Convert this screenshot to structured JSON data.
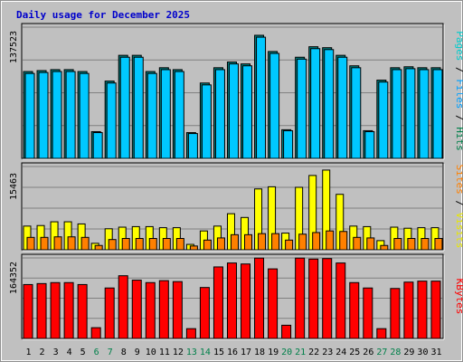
{
  "chart_data": {
    "type": "bar",
    "title": "Daily usage for December 2025",
    "days": [
      "1",
      "2",
      "3",
      "4",
      "5",
      "6",
      "7",
      "8",
      "9",
      "10",
      "11",
      "12",
      "13",
      "14",
      "15",
      "16",
      "17",
      "18",
      "19",
      "20",
      "21",
      "22",
      "23",
      "24",
      "25",
      "26",
      "27",
      "28",
      "29",
      "30",
      "31"
    ],
    "weekend_days": [
      "6",
      "7",
      "13",
      "14",
      "20",
      "21",
      "27",
      "28"
    ],
    "panels": [
      {
        "name": "pages-files-hits",
        "max_label": "137523",
        "ymax": 137523,
        "side_labels": [
          {
            "text": "Pages",
            "color": "#00cccc"
          },
          {
            "text": " / ",
            "color": "#000000"
          },
          {
            "text": "Files",
            "color": "#00a0ff"
          },
          {
            "text": " / ",
            "color": "#000000"
          },
          {
            "text": "Hits",
            "color": "#00804a"
          }
        ],
        "series": [
          {
            "name": "Hits",
            "color": "#008080",
            "values": [
              91000,
              92000,
              93000,
              93000,
              91000,
              28000,
              81000,
              108000,
              108000,
              91000,
              95000,
              93000,
              27000,
              79000,
              95000,
              101000,
              99000,
              129000,
              112000,
              30000,
              106000,
              117000,
              116000,
              108000,
              97000,
              29000,
              82000,
              95000,
              96000,
              95000,
              95000
            ]
          },
          {
            "name": "Files",
            "color": "#00c8ff",
            "values": [
              89000,
              90000,
              91000,
              91000,
              89000,
              27000,
              79000,
              106000,
              106000,
              89000,
              93000,
              91000,
              26000,
              77000,
              93000,
              99000,
              97000,
              127000,
              110000,
              29000,
              104000,
              115000,
              114000,
              106000,
              95000,
              28000,
              80000,
              93000,
              94000,
              93000,
              93000
            ]
          }
        ]
      },
      {
        "name": "visits-sites",
        "max_label": "15463",
        "ymax": 15463,
        "side_labels": [
          {
            "text": "Sites",
            "color": "#ff8000"
          },
          {
            "text": " / ",
            "color": "#000000"
          },
          {
            "text": "Visits",
            "color": "#e8e800"
          }
        ],
        "series": [
          {
            "name": "Visits",
            "color": "#ffff00",
            "values": [
              4400,
              4500,
              5200,
              5200,
              4800,
              1200,
              3900,
              4200,
              4300,
              4300,
              4100,
              4100,
              1000,
              3500,
              4400,
              6700,
              6000,
              11300,
              11700,
              3100,
              11600,
              13800,
              14800,
              10300,
              4400,
              4300,
              1700,
              4200,
              4000,
              4100,
              4100
            ]
          },
          {
            "name": "Sites",
            "color": "#ff8000",
            "values": [
              2300,
              2300,
              2400,
              2400,
              2300,
              800,
              1900,
              2100,
              2100,
              2100,
              2100,
              2100,
              700,
              1800,
              2200,
              2800,
              2800,
              3000,
              3000,
              1800,
              2900,
              3200,
              3500,
              3400,
              2300,
              2200,
              800,
              2100,
              2100,
              2100,
              2100
            ]
          }
        ]
      },
      {
        "name": "kbytes",
        "max_label": "164352",
        "ymax": 164352,
        "side_labels": [
          {
            "text": "KBytes",
            "color": "#ff0000"
          }
        ],
        "series": [
          {
            "name": "KBytes",
            "color": "#ff0000",
            "values": [
              110000,
              112000,
              114000,
              114000,
              110000,
              22000,
              103000,
              128000,
              119000,
              114000,
              118000,
              116000,
              20000,
              104000,
              146000,
              154000,
              152000,
              164000,
              142000,
              27000,
              164000,
              162000,
              163000,
              154000,
              114000,
              103000,
              20000,
              102000,
              115000,
              117000,
              117000
            ]
          }
        ]
      }
    ]
  }
}
